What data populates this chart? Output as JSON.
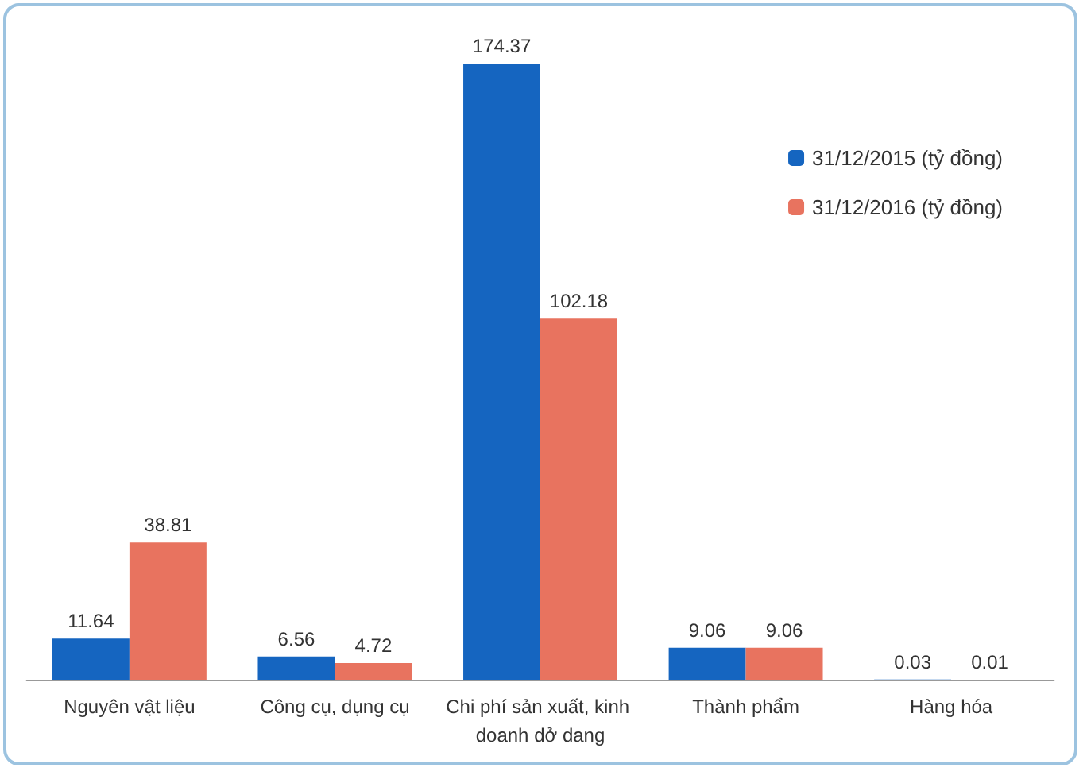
{
  "chart_data": {
    "type": "bar",
    "categories": [
      "Nguyên vật liệu",
      "Công cụ, dụng cụ",
      "Chi phí sản xuất, kinh doanh dở dang",
      "Thành phẩm",
      "Hàng hóa"
    ],
    "series": [
      {
        "name": "31/12/2015 (tỷ đồng)",
        "color": "#1565c0",
        "values": [
          11.64,
          6.56,
          174.37,
          9.06,
          0.03
        ]
      },
      {
        "name": "31/12/2016 (tỷ đồng)",
        "color": "#e8735f",
        "values": [
          38.81,
          4.72,
          102.18,
          9.06,
          0.01
        ]
      }
    ],
    "data_labels": true,
    "legend": "top right"
  }
}
